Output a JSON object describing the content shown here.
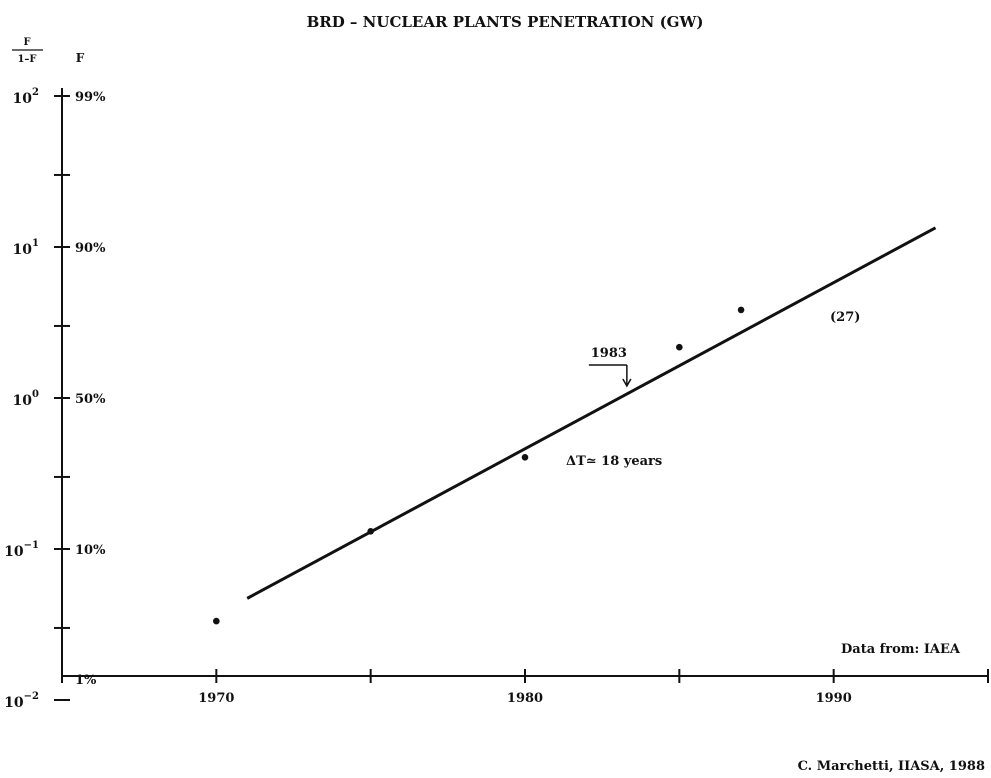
{
  "chart_data": {
    "type": "scatter",
    "title": "BRD – NUCLEAR PLANTS PENETRATION (GW)",
    "y_scale": "log",
    "yaxis_header_ratio": {
      "numerator": "F",
      "denominator": "1–F"
    },
    "yaxis_header_f": "F",
    "ylim": [
      0.01,
      100
    ],
    "y_ticks": [
      {
        "value": 100,
        "base": "10",
        "exp": "2",
        "pct": "99%"
      },
      {
        "value": 10,
        "base": "10",
        "exp": "1",
        "pct": "90%"
      },
      {
        "value": 1,
        "base": "10",
        "exp": "0",
        "pct": "50%"
      },
      {
        "value": 0.1,
        "base": "10",
        "exp": "−1",
        "pct": "10%"
      },
      {
        "value": 0.01,
        "base": "10",
        "exp": "−2",
        "pct": "1%"
      }
    ],
    "y_minor_ticks": [
      30,
      3,
      0.3,
      0.03
    ],
    "xlim": [
      1965,
      1995
    ],
    "x_ticks": [
      1970,
      1980,
      1990
    ],
    "x_minor_ticks": [
      1965,
      1975,
      1985,
      1995
    ],
    "series": [
      {
        "points": [
          {
            "x": 1970,
            "y": 0.0333
          },
          {
            "x": 1975,
            "y": 0.131
          },
          {
            "x": 1980,
            "y": 0.405
          },
          {
            "x": 1985,
            "y": 2.17
          },
          {
            "x": 1987,
            "y": 3.83
          }
        ]
      }
    ],
    "fit_line": {
      "x": [
        1971,
        1993.3
      ],
      "y": [
        0.0471,
        13.4
      ]
    },
    "annotations": {
      "midpoint_label": "1983",
      "midpoint_x": 1983.3,
      "delta_t": "ΔT≃ 18 years",
      "curve_number": "(27)",
      "data_source": "Data from:  IAEA",
      "credit": "C. Marchetti, IIASA, 1988"
    }
  }
}
